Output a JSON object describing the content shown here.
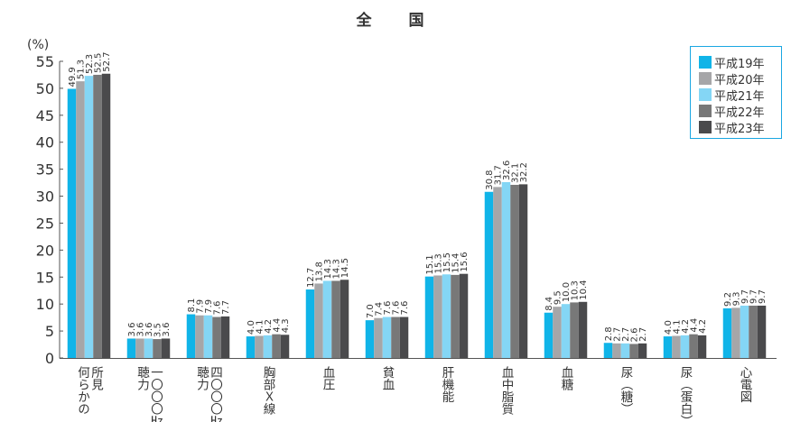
{
  "chart_data": {
    "type": "bar",
    "title": "全　国",
    "ylabel": "(%)",
    "ylim": [
      0,
      55
    ],
    "yticks": [
      0,
      5,
      10,
      15,
      20,
      25,
      30,
      35,
      40,
      45,
      50,
      55
    ],
    "grid": false,
    "legend_position": "top-right",
    "categories": [
      [
        "所見",
        "何らかの"
      ],
      [
        "一〇〇〇㎐",
        "聴力"
      ],
      [
        "四〇〇〇㎐",
        "聴力"
      ],
      [
        "胸部Ｘ線"
      ],
      [
        "血圧"
      ],
      [
        "貧血"
      ],
      [
        "肝機能"
      ],
      [
        "血中脂質"
      ],
      [
        "血糖"
      ],
      [
        "尿（糖）"
      ],
      [
        "尿（蛋白）"
      ],
      [
        "心電図"
      ]
    ],
    "series": [
      {
        "name": "平成19年",
        "color": "#10b4e8",
        "values": [
          49.9,
          3.6,
          8.1,
          4.0,
          12.7,
          7.0,
          15.1,
          30.8,
          8.4,
          2.8,
          4.0,
          9.2
        ]
      },
      {
        "name": "平成20年",
        "color": "#a6a6a8",
        "values": [
          51.3,
          3.6,
          7.9,
          4.1,
          13.8,
          7.4,
          15.3,
          31.7,
          9.5,
          2.7,
          4.1,
          9.3
        ]
      },
      {
        "name": "平成21年",
        "color": "#84d6f5",
        "values": [
          52.3,
          3.6,
          7.9,
          4.2,
          14.3,
          7.6,
          15.5,
          32.6,
          10.0,
          2.7,
          4.2,
          9.7
        ]
      },
      {
        "name": "平成22年",
        "color": "#787878",
        "values": [
          52.5,
          3.5,
          7.6,
          4.4,
          14.3,
          7.6,
          15.4,
          32.1,
          10.3,
          2.6,
          4.4,
          9.7
        ]
      },
      {
        "name": "平成23年",
        "color": "#4a4a4c",
        "values": [
          52.7,
          3.6,
          7.7,
          4.3,
          14.5,
          7.6,
          15.6,
          32.2,
          10.4,
          2.7,
          4.2,
          9.7
        ]
      }
    ]
  }
}
